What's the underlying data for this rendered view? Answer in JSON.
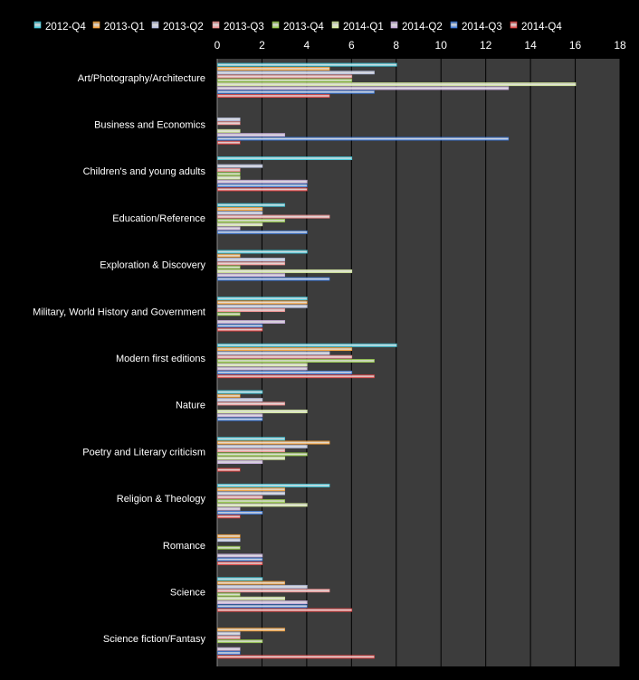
{
  "chart_data": {
    "type": "bar",
    "orientation": "horizontal",
    "title": "",
    "xlabel": "",
    "ylabel": "",
    "xlim": [
      0,
      18
    ],
    "x_ticks": [
      "0",
      "2",
      "4",
      "6",
      "8",
      "10",
      "12",
      "14",
      "16",
      "18"
    ],
    "grid": true,
    "legend_position": "top",
    "background": "#3c3c3c",
    "categories": [
      "Art/Photography/Architecture",
      "Business and Economics",
      "Children's and young adults",
      "Education/Reference",
      "Exploration & Discovery",
      "Military, World History and Government",
      "Modern first editions",
      "Nature",
      "Poetry and Literary criticism",
      "Religion & Theology",
      "Romance",
      "Science",
      "Science fiction/Fantasy"
    ],
    "series": [
      {
        "name": "2012-Q4",
        "color": "#33c4d8",
        "values": [
          8,
          0,
          6,
          3,
          4,
          4,
          8,
          2,
          3,
          5,
          0,
          2,
          0
        ]
      },
      {
        "name": "2013-Q1",
        "color": "#f59a2a",
        "values": [
          5,
          0,
          0,
          2,
          1,
          4,
          6,
          1,
          5,
          3,
          1,
          3,
          3
        ]
      },
      {
        "name": "2013-Q2",
        "color": "#b3bde0",
        "values": [
          7,
          1,
          2,
          2,
          3,
          4,
          5,
          2,
          4,
          3,
          1,
          4,
          1
        ]
      },
      {
        "name": "2013-Q3",
        "color": "#f08a8a",
        "values": [
          6,
          1,
          1,
          5,
          3,
          3,
          6,
          3,
          3,
          2,
          0,
          5,
          1
        ]
      },
      {
        "name": "2013-Q4",
        "color": "#8ec63f",
        "values": [
          6,
          0,
          1,
          3,
          1,
          1,
          7,
          0,
          4,
          3,
          1,
          1,
          2
        ]
      },
      {
        "name": "2014-Q1",
        "color": "#d6ed9a",
        "values": [
          16,
          1,
          1,
          2,
          6,
          0,
          4,
          4,
          3,
          4,
          0,
          3,
          0
        ]
      },
      {
        "name": "2014-Q2",
        "color": "#c3a6d9",
        "values": [
          13,
          3,
          4,
          1,
          3,
          3,
          4,
          2,
          2,
          1,
          2,
          4,
          1
        ]
      },
      {
        "name": "2014-Q3",
        "color": "#2e6fd6",
        "values": [
          7,
          13,
          4,
          4,
          5,
          2,
          6,
          2,
          0,
          2,
          2,
          4,
          1
        ]
      },
      {
        "name": "2014-Q4",
        "color": "#e03a3a",
        "values": [
          5,
          1,
          4,
          0,
          0,
          2,
          7,
          0,
          1,
          1,
          2,
          6,
          7
        ]
      }
    ]
  }
}
